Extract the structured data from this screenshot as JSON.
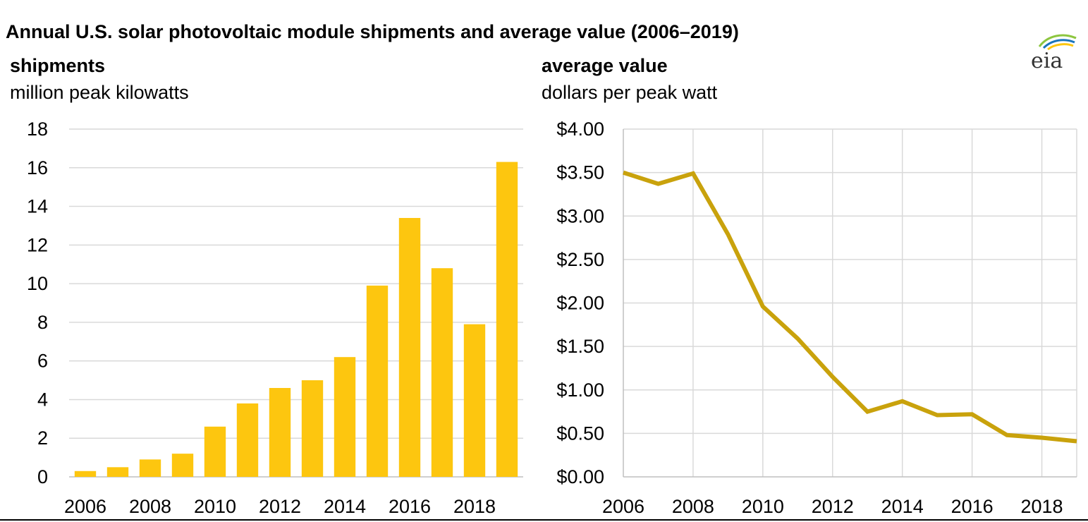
{
  "title": "Annual U.S. solar photovoltaic module shipments and average value (2006–2019)",
  "logo_text": "eia",
  "colors": {
    "bar": "#FDC60F",
    "line": "#C9A20C",
    "grid": "#D9D9D9",
    "text": "#000000"
  },
  "left_panel": {
    "heading": "shipments",
    "units": "million peak kilowatts"
  },
  "right_panel": {
    "heading": "average value",
    "units": "dollars per peak watt"
  },
  "chart_data": [
    {
      "type": "bar",
      "title": "shipments",
      "ylabel": "million peak kilowatts",
      "categories": [
        "2006",
        "2007",
        "2008",
        "2009",
        "2010",
        "2011",
        "2012",
        "2013",
        "2014",
        "2015",
        "2016",
        "2017",
        "2018",
        "2019"
      ],
      "x_tick_labels": [
        "2006",
        "2008",
        "2010",
        "2012",
        "2014",
        "2016",
        "2018"
      ],
      "values": [
        0.3,
        0.5,
        0.9,
        1.2,
        2.6,
        3.8,
        4.6,
        5.0,
        6.2,
        9.9,
        13.4,
        10.8,
        7.9,
        16.3
      ],
      "ylim": [
        0,
        18
      ],
      "y_tick_values": [
        0,
        2,
        4,
        6,
        8,
        10,
        12,
        14,
        16,
        18
      ],
      "y_tick_labels": [
        "0",
        "2",
        "4",
        "6",
        "8",
        "10",
        "12",
        "14",
        "16",
        "18"
      ],
      "grid": "horizontal"
    },
    {
      "type": "line",
      "title": "average value",
      "ylabel": "dollars per peak watt",
      "x": [
        2006,
        2007,
        2008,
        2009,
        2010,
        2011,
        2012,
        2013,
        2014,
        2015,
        2016,
        2017,
        2018,
        2019
      ],
      "values": [
        3.5,
        3.37,
        3.49,
        2.79,
        1.96,
        1.59,
        1.15,
        0.75,
        0.87,
        0.71,
        0.72,
        0.48,
        0.45,
        0.41
      ],
      "xlim": [
        2006,
        2019
      ],
      "x_tick_values": [
        2006,
        2008,
        2010,
        2012,
        2014,
        2016,
        2018
      ],
      "x_tick_labels": [
        "2006",
        "2008",
        "2010",
        "2012",
        "2014",
        "2016",
        "2018"
      ],
      "ylim": [
        0,
        4
      ],
      "y_tick_values": [
        0,
        0.5,
        1.0,
        1.5,
        2.0,
        2.5,
        3.0,
        3.5,
        4.0
      ],
      "y_tick_labels": [
        "$0.00",
        "$0.50",
        "$1.00",
        "$1.50",
        "$2.00",
        "$2.50",
        "$3.00",
        "$3.50",
        "$4.00"
      ],
      "grid": "both"
    }
  ]
}
